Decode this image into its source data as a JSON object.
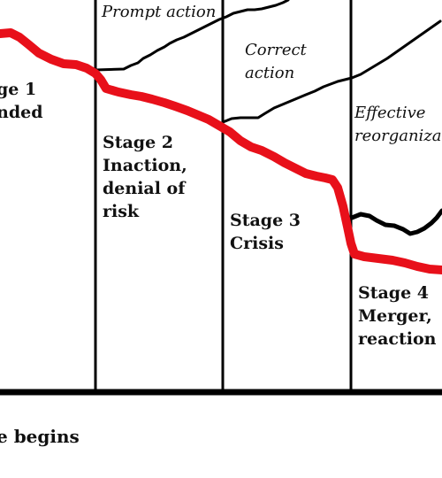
{
  "colors": {
    "background": "#ffffff",
    "decline_curve": "#e8101a",
    "action_curves": "#000000",
    "lines": "#000000"
  },
  "labels": {
    "stage1": [
      "ge 1",
      "nded"
    ],
    "stage2": [
      "Stage 2",
      "Inaction,",
      "denial of",
      "risk"
    ],
    "stage3": [
      "Stage 3",
      "Crisis"
    ],
    "stage4": [
      "Stage 4",
      "Merger,",
      "reaction"
    ],
    "prompt_action": "Prompt action",
    "correct_action": [
      "Correct",
      "action"
    ],
    "effective_reorganization": [
      "Effective",
      "reorganiza"
    ],
    "bottom": "e begins"
  }
}
